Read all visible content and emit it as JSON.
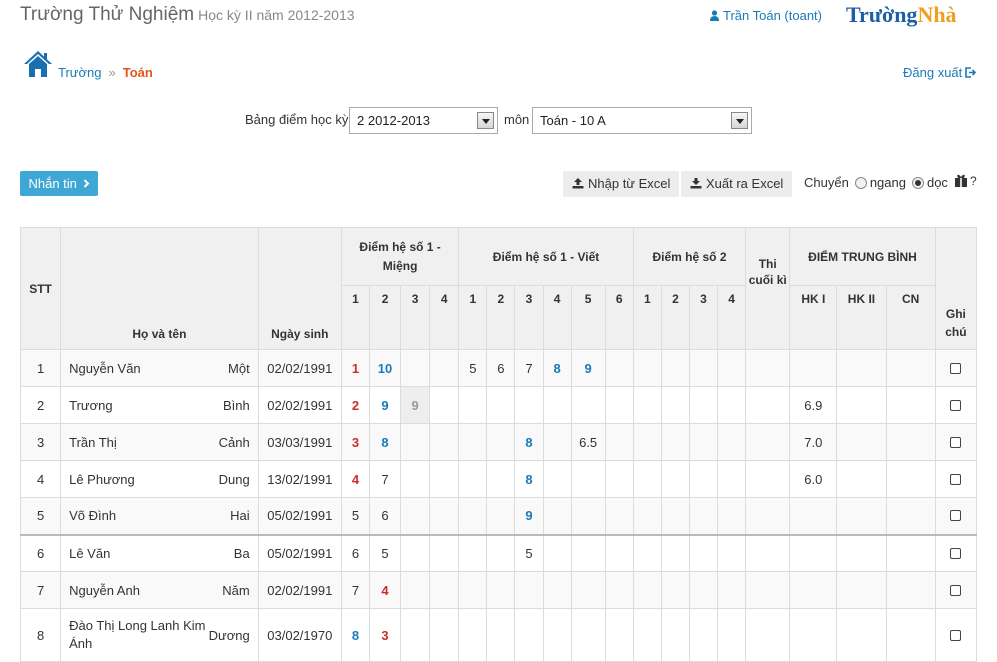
{
  "header": {
    "school_name": "Trường Thử Nghiệm",
    "semester_info": "Học kỳ II năm 2012-2013",
    "user_link": "Trần Toán (toant)",
    "brand_part1": "Trường",
    "brand_part2": "Nhà"
  },
  "breadcrumb": {
    "school": "Trường",
    "separator": "»",
    "current": "Toán"
  },
  "logout_label": "Đăng xuất",
  "filter": {
    "label": "Bảng điểm học kỳ",
    "semester_value": "2 2012-2013",
    "subject_label": "môn",
    "subject_value": "Toán - 10 A"
  },
  "actions": {
    "message_button": "Nhắn tin",
    "import_button": "Nhập từ Excel",
    "export_button": "Xuất ra Excel",
    "toggle_label": "Chuyển",
    "option_horizontal": "ngang",
    "option_vertical": "dọc",
    "selected_option": "dọc",
    "help": "?"
  },
  "table": {
    "headers": {
      "stt": "STT",
      "name": "Họ và tên",
      "dob": "Ngày sinh",
      "oral": "Điểm hệ số 1 - Miệng",
      "written": "Điểm hệ số 1 - Viết",
      "coef2": "Điểm hệ số 2",
      "final_exam": "Thi cuối kì",
      "average": "ĐIỂM TRUNG BÌNH",
      "hk1": "HK I",
      "hk2": "HK II",
      "cn": "CN",
      "note": "Ghi chú"
    },
    "oral_cols": [
      "1",
      "2",
      "3",
      "4"
    ],
    "written_cols": [
      "1",
      "2",
      "3",
      "4",
      "5",
      "6"
    ],
    "coef2_cols": [
      "1",
      "2",
      "3",
      "4"
    ],
    "rows": [
      {
        "stt": "1",
        "family": "Nguyễn Văn",
        "given": "Một",
        "dob": "02/02/1991",
        "oral": [
          [
            "1",
            "red"
          ],
          [
            "10",
            "blue"
          ],
          [
            "",
            ""
          ],
          [
            "",
            ""
          ]
        ],
        "written": [
          [
            "5",
            ""
          ],
          [
            "6",
            ""
          ],
          [
            "7",
            ""
          ],
          [
            "8",
            "blue"
          ],
          [
            "9",
            "blue"
          ],
          [
            "",
            ""
          ]
        ],
        "coef2": [
          "",
          "",
          "",
          ""
        ],
        "final": "",
        "hk1": "",
        "hk2": "",
        "cn": ""
      },
      {
        "stt": "2",
        "family": "Trương",
        "given": "Bình",
        "dob": "02/02/1991",
        "oral": [
          [
            "2",
            "red"
          ],
          [
            "9",
            "blue"
          ],
          [
            "9",
            "gray"
          ],
          [
            "",
            ""
          ]
        ],
        "written": [
          [
            "",
            ""
          ],
          [
            "",
            ""
          ],
          [
            "",
            ""
          ],
          [
            "",
            ""
          ],
          [
            "",
            ""
          ],
          [
            "",
            ""
          ]
        ],
        "coef2": [
          "",
          "",
          "",
          ""
        ],
        "final": "",
        "hk1": "6.9",
        "hk2": "",
        "cn": ""
      },
      {
        "stt": "3",
        "family": "Trần Thị",
        "given": "Cảnh",
        "dob": "03/03/1991",
        "oral": [
          [
            "3",
            "red"
          ],
          [
            "8",
            "blue"
          ],
          [
            "",
            ""
          ],
          [
            "",
            ""
          ]
        ],
        "written": [
          [
            "",
            ""
          ],
          [
            "",
            ""
          ],
          [
            "8",
            "blue"
          ],
          [
            "",
            ""
          ],
          [
            "6.5",
            ""
          ],
          [
            "",
            ""
          ]
        ],
        "coef2": [
          "",
          "",
          "",
          ""
        ],
        "final": "",
        "hk1": "7.0",
        "hk2": "",
        "cn": ""
      },
      {
        "stt": "4",
        "family": "Lê Phương",
        "given": "Dung",
        "dob": "13/02/1991",
        "oral": [
          [
            "4",
            "red"
          ],
          [
            "7",
            ""
          ],
          [
            "",
            ""
          ],
          [
            "",
            ""
          ]
        ],
        "written": [
          [
            "",
            ""
          ],
          [
            "",
            ""
          ],
          [
            "8",
            "blue"
          ],
          [
            "",
            ""
          ],
          [
            "",
            ""
          ],
          [
            "",
            ""
          ]
        ],
        "coef2": [
          "",
          "",
          "",
          ""
        ],
        "final": "",
        "hk1": "6.0",
        "hk2": "",
        "cn": ""
      },
      {
        "stt": "5",
        "family": "Võ Đình",
        "given": "Hai",
        "dob": "05/02/1991",
        "oral": [
          [
            "5",
            ""
          ],
          [
            "6",
            ""
          ],
          [
            "",
            ""
          ],
          [
            "",
            ""
          ]
        ],
        "written": [
          [
            "",
            ""
          ],
          [
            "",
            ""
          ],
          [
            "9",
            "blue"
          ],
          [
            "",
            ""
          ],
          [
            "",
            ""
          ],
          [
            "",
            ""
          ]
        ],
        "coef2": [
          "",
          "",
          "",
          ""
        ],
        "final": "",
        "hk1": "",
        "hk2": "",
        "cn": ""
      },
      {
        "stt": "6",
        "family": "Lê Văn",
        "given": "Ba",
        "dob": "05/02/1991",
        "oral": [
          [
            "6",
            ""
          ],
          [
            "5",
            ""
          ],
          [
            "",
            ""
          ],
          [
            "",
            ""
          ]
        ],
        "written": [
          [
            "",
            ""
          ],
          [
            "",
            ""
          ],
          [
            "5",
            ""
          ],
          [
            "",
            ""
          ],
          [
            "",
            ""
          ],
          [
            "",
            ""
          ]
        ],
        "coef2": [
          "",
          "",
          "",
          ""
        ],
        "final": "",
        "hk1": "",
        "hk2": "",
        "cn": ""
      },
      {
        "stt": "7",
        "family": "Nguyễn Anh",
        "given": "Năm",
        "dob": "02/02/1991",
        "oral": [
          [
            "7",
            ""
          ],
          [
            "4",
            "red"
          ],
          [
            "",
            ""
          ],
          [
            "",
            ""
          ]
        ],
        "written": [
          [
            "",
            ""
          ],
          [
            "",
            ""
          ],
          [
            "",
            ""
          ],
          [
            "",
            ""
          ],
          [
            "",
            ""
          ],
          [
            "",
            ""
          ]
        ],
        "coef2": [
          "",
          "",
          "",
          ""
        ],
        "final": "",
        "hk1": "",
        "hk2": "",
        "cn": ""
      },
      {
        "stt": "8",
        "family": "Đào Thị Long Lanh Kim Ánh",
        "given": "Dương",
        "dob": "03/02/1970",
        "oral": [
          [
            "8",
            "blue"
          ],
          [
            "3",
            "red"
          ],
          [
            "",
            ""
          ],
          [
            "",
            ""
          ]
        ],
        "written": [
          [
            "",
            ""
          ],
          [
            "",
            ""
          ],
          [
            "",
            ""
          ],
          [
            "",
            ""
          ],
          [
            "",
            ""
          ],
          [
            "",
            ""
          ]
        ],
        "coef2": [
          "",
          "",
          "",
          ""
        ],
        "final": "",
        "hk1": "",
        "hk2": "",
        "cn": ""
      }
    ]
  },
  "colors": {
    "link": "#1a7bb9",
    "accent_orange": "#e4561f",
    "score_red": "#c9302c",
    "score_blue": "#1a7bb9",
    "button_blue": "#3fa7d6"
  },
  "icons": [
    "user-icon",
    "home-icon",
    "logout-icon",
    "chevron-right-icon",
    "upload-icon",
    "download-icon",
    "settings-icon",
    "checkbox-icon"
  ]
}
